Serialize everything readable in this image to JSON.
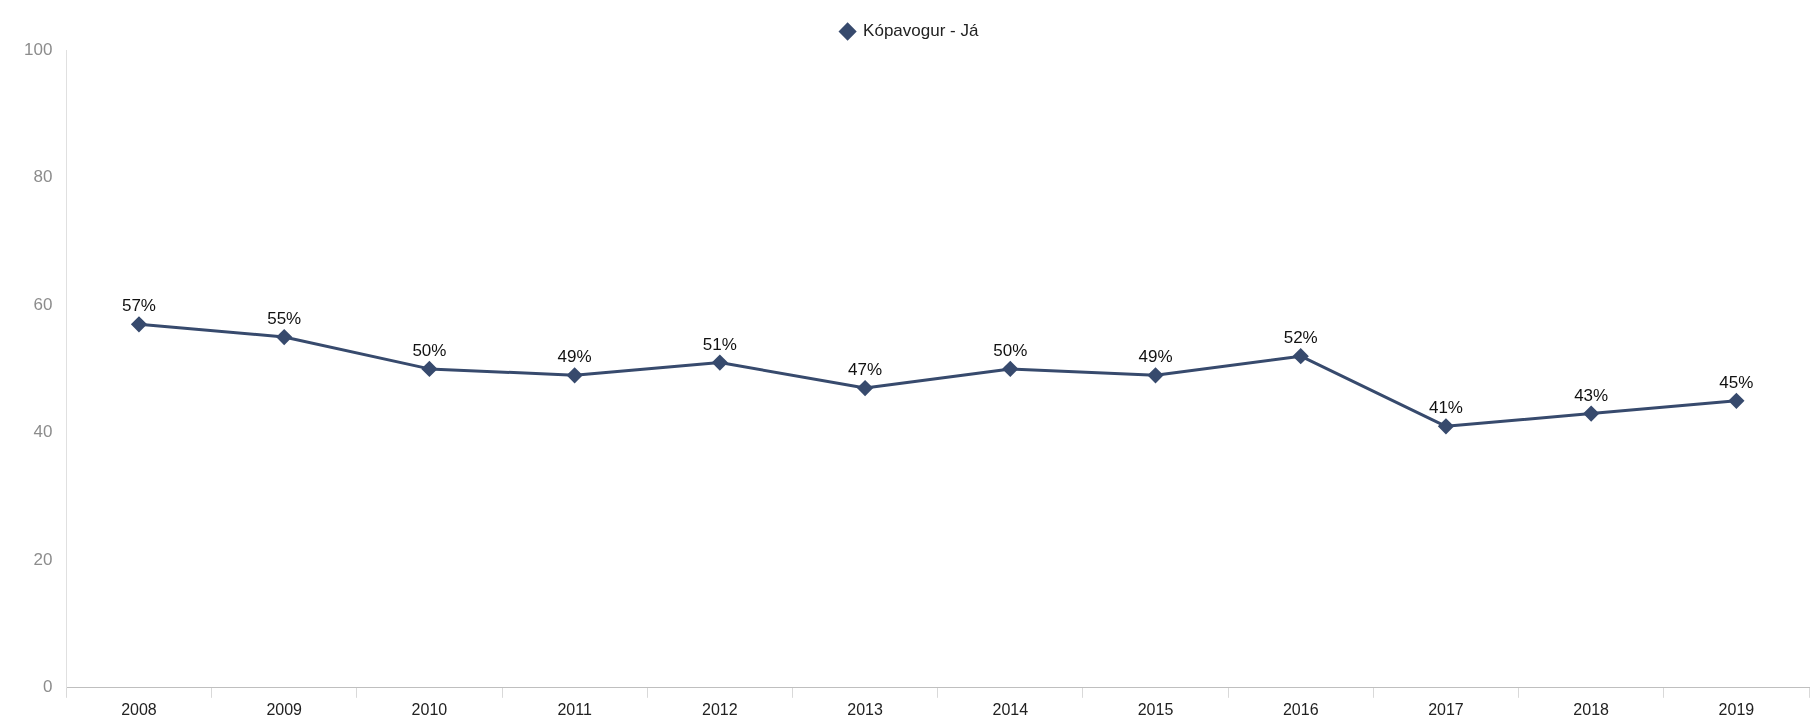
{
  "chart_data": {
    "type": "line",
    "categories": [
      "2008",
      "2009",
      "2010",
      "2011",
      "2012",
      "2013",
      "2014",
      "2015",
      "2016",
      "2017",
      "2018",
      "2019"
    ],
    "series": [
      {
        "name": "Kópavogur - Já",
        "color": "#374a6d",
        "values": [
          57,
          55,
          50,
          49,
          51,
          47,
          50,
          49,
          52,
          41,
          43,
          45
        ],
        "value_labels": [
          "57%",
          "55%",
          "50%",
          "49%",
          "51%",
          "47%",
          "50%",
          "49%",
          "52%",
          "41%",
          "43%",
          "45%"
        ]
      }
    ],
    "ylim": [
      0,
      100
    ],
    "yticks": [
      0,
      20,
      40,
      60,
      80,
      100
    ],
    "grid": false,
    "legend": "top",
    "marker": "diamond",
    "line_style": "solid"
  }
}
